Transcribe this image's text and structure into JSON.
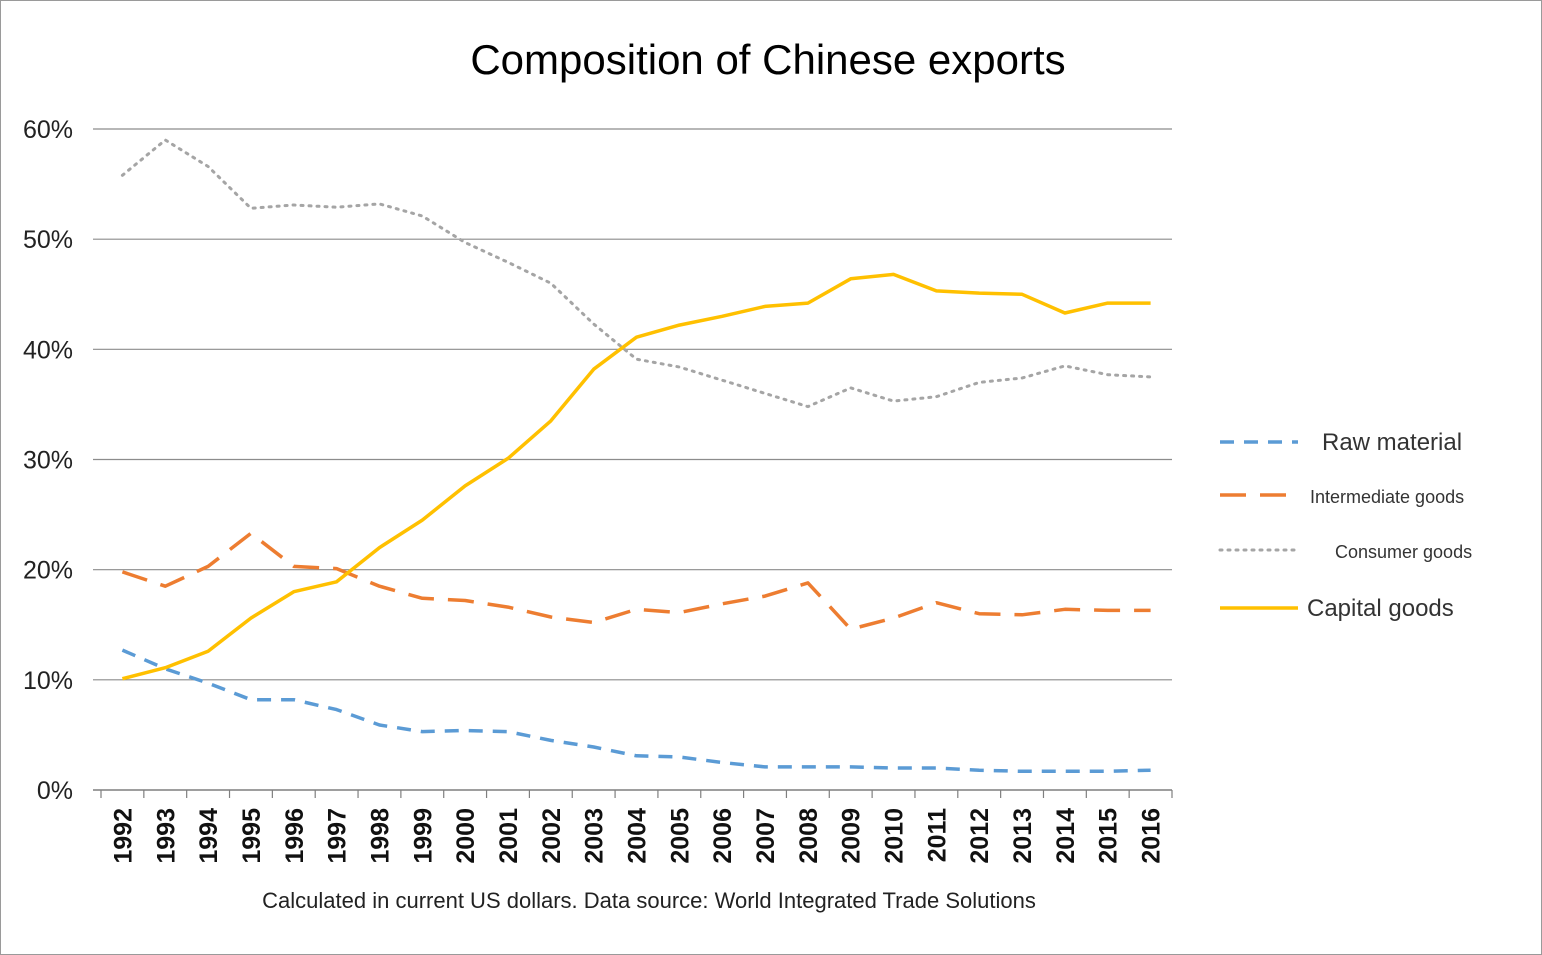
{
  "chart_data": {
    "type": "line",
    "title": "Composition of Chinese exports",
    "note": "Calculated in current US dollars. Data source: World Integrated Trade Solutions",
    "x": [
      1992,
      1993,
      1994,
      1995,
      1996,
      1997,
      1998,
      1999,
      2000,
      2001,
      2002,
      2003,
      2004,
      2005,
      2006,
      2007,
      2008,
      2009,
      2010,
      2011,
      2012,
      2013,
      2014,
      2015,
      2016
    ],
    "x_tick_labels": [
      "1992",
      "1993",
      "1994",
      "1995",
      "1996",
      "1997",
      "1998",
      "1999",
      "2000",
      "2001",
      "2002",
      "2003",
      "2004",
      "2005",
      "2006",
      "2007",
      "2008",
      "2009",
      "2010",
      "2011",
      "2012",
      "2013",
      "2014",
      "2015",
      "2016"
    ],
    "y_tick_labels": [
      "0%",
      "10%",
      "20%",
      "30%",
      "40%",
      "50%",
      "60%"
    ],
    "ylim": [
      0,
      60
    ],
    "yticks": [
      0,
      10,
      20,
      30,
      40,
      50,
      60
    ],
    "grid": true,
    "legend_position": "right",
    "series": [
      {
        "name": "Raw material",
        "style": "dashed",
        "color": "#5b9bd5",
        "values": [
          12.7,
          11.0,
          9.7,
          8.2,
          8.2,
          7.3,
          5.9,
          5.3,
          5.4,
          5.3,
          4.5,
          3.9,
          3.1,
          3.0,
          2.5,
          2.1,
          2.1,
          2.1,
          2.0,
          2.0,
          1.8,
          1.7,
          1.7,
          1.7,
          1.8
        ]
      },
      {
        "name": "Intermediate goods",
        "style": "long-dashed",
        "color": "#ed7d31",
        "values": [
          19.8,
          18.5,
          20.3,
          23.3,
          20.3,
          20.1,
          18.5,
          17.4,
          17.2,
          16.6,
          15.7,
          15.2,
          16.4,
          16.1,
          16.9,
          17.6,
          18.8,
          14.6,
          15.6,
          17.0,
          16.0,
          15.9,
          16.4,
          16.3,
          16.3
        ]
      },
      {
        "name": "Consumer goods",
        "style": "dotted",
        "color": "#a5a5a5",
        "values": [
          55.8,
          59.0,
          56.6,
          52.8,
          53.1,
          52.9,
          53.2,
          52.1,
          49.7,
          47.9,
          46.0,
          42.3,
          39.1,
          38.4,
          37.2,
          36.0,
          34.8,
          36.5,
          35.3,
          35.7,
          37.0,
          37.4,
          38.5,
          37.7,
          37.5
        ]
      },
      {
        "name": "Capital goods",
        "style": "solid",
        "color": "#ffc000",
        "values": [
          10.1,
          11.1,
          12.6,
          15.6,
          18.0,
          18.9,
          22.0,
          24.5,
          27.6,
          30.1,
          33.5,
          38.2,
          41.1,
          42.2,
          43.0,
          43.9,
          44.2,
          46.4,
          46.8,
          45.3,
          45.1,
          45.0,
          43.3,
          44.2,
          44.2
        ]
      }
    ]
  }
}
